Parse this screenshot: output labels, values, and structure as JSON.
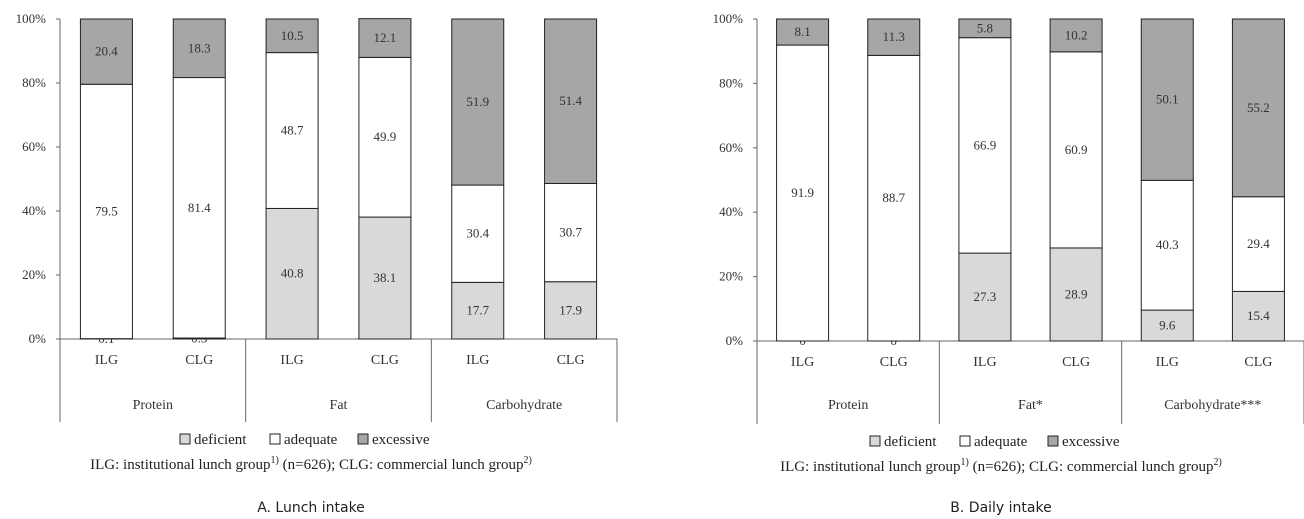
{
  "legend": {
    "deficient": "deficient",
    "adequate": "adequate",
    "excessive": "excessive"
  },
  "colors": {
    "deficient": "#d9d9d9",
    "adequate": "#ffffff",
    "excessive": "#a6a6a6",
    "stroke": "#222222"
  },
  "chart_data": [
    {
      "type": "bar",
      "stacked": true,
      "caption": "A. Lunch intake",
      "note": {
        "pre": "ILG: institutional lunch group",
        "sup1": "1)",
        "mid": " (n=626); CLG: commercial lunch group",
        "sup2": "2)"
      },
      "ylim": [
        0,
        100
      ],
      "yticks": [
        "0%",
        "20%",
        "40%",
        "60%",
        "80%",
        "100%"
      ],
      "groups": [
        "Protein",
        "Fat",
        "Carbohydrate"
      ],
      "categories": [
        "ILG",
        "CLG",
        "ILG",
        "CLG",
        "ILG",
        "CLG"
      ],
      "series": [
        {
          "name": "deficient",
          "values": [
            0.1,
            0.3,
            40.8,
            38.1,
            17.7,
            17.9
          ],
          "labels": [
            "0.1",
            "0.3",
            "40.8",
            "38.1",
            "17.7",
            "17.9"
          ]
        },
        {
          "name": "adequate",
          "values": [
            79.5,
            81.4,
            48.7,
            49.9,
            30.4,
            30.7
          ],
          "labels": [
            "79.5",
            "81.4",
            "48.7",
            "49.9",
            "30.4",
            "30.7"
          ]
        },
        {
          "name": "excessive",
          "values": [
            20.4,
            18.3,
            10.5,
            12.1,
            51.9,
            51.4
          ],
          "labels": [
            "20.4",
            "18.3",
            "10.5",
            "12.1",
            "51.9",
            "51.4"
          ]
        }
      ],
      "legend_position": "bottom"
    },
    {
      "type": "bar",
      "stacked": true,
      "caption": "B. Daily intake",
      "note": {
        "pre": "ILG: institutional lunch group",
        "sup1": "1)",
        "mid": " (n=626); CLG: commercial lunch group",
        "sup2": "2)"
      },
      "ylim": [
        0,
        100
      ],
      "yticks": [
        "0%",
        "20%",
        "40%",
        "60%",
        "80%",
        "100%"
      ],
      "groups": [
        "Protein",
        "Fat*",
        "Carbohydrate***"
      ],
      "categories": [
        "ILG",
        "CLG",
        "ILG",
        "CLG",
        "ILG",
        "CLG"
      ],
      "series": [
        {
          "name": "deficient",
          "values": [
            0,
            0,
            27.3,
            28.9,
            9.6,
            15.4
          ],
          "labels": [
            "0",
            "0",
            "27.3",
            "28.9",
            "9.6",
            "15.4"
          ]
        },
        {
          "name": "adequate",
          "values": [
            91.9,
            88.7,
            66.9,
            60.9,
            40.3,
            29.4
          ],
          "labels": [
            "91.9",
            "88.7",
            "66.9",
            "60.9",
            "40.3",
            "29.4"
          ]
        },
        {
          "name": "excessive",
          "values": [
            8.1,
            11.3,
            5.8,
            10.2,
            50.1,
            55.2
          ],
          "labels": [
            "8.1",
            "11.3",
            "5.8",
            "10.2",
            "50.1",
            "55.2"
          ]
        }
      ],
      "legend_position": "bottom"
    }
  ]
}
